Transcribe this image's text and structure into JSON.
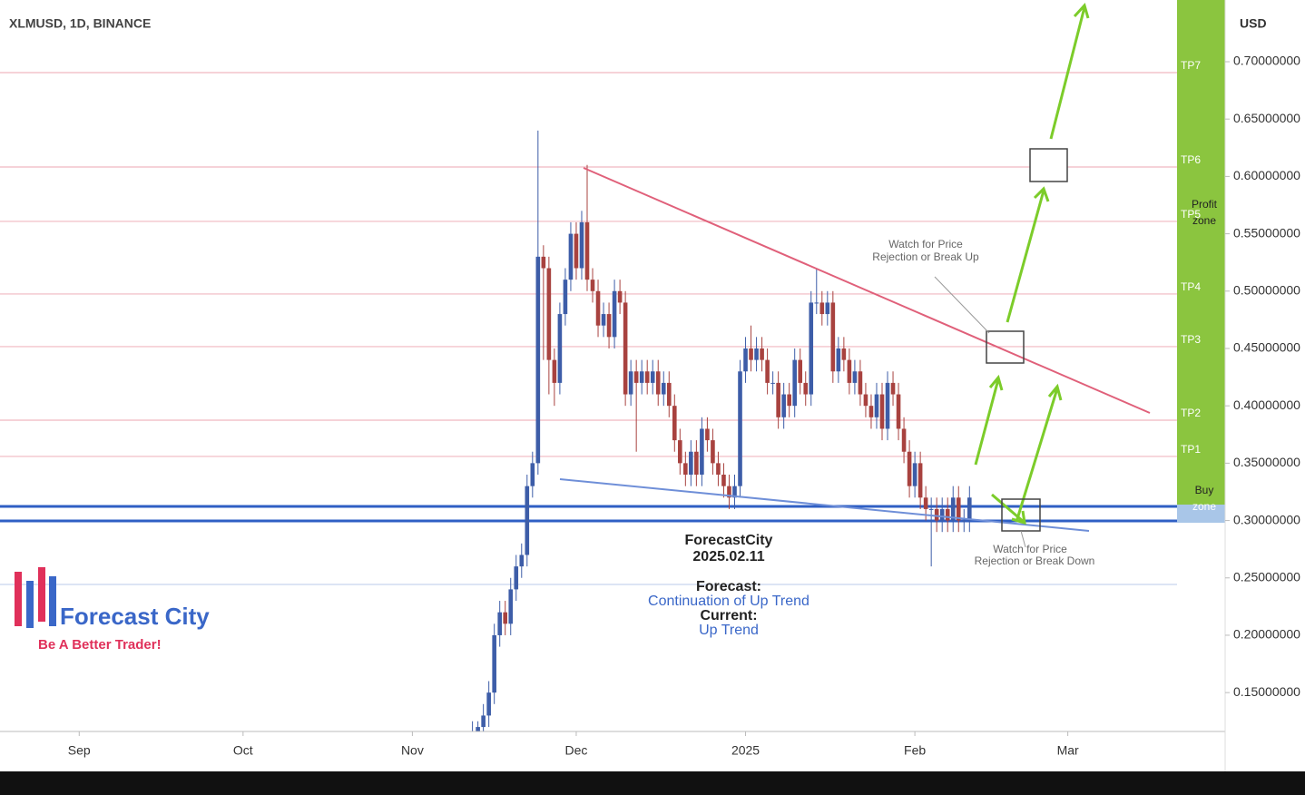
{
  "chart_data": {
    "type": "candlestick",
    "title": "XLMUSD, 1D, BINANCE",
    "currency": "USD",
    "xlim": [
      -14.5,
      201
    ],
    "xticks": [
      {
        "value": 0,
        "label": "Sep"
      },
      {
        "value": 30,
        "label": "Oct"
      },
      {
        "value": 61,
        "label": "Nov"
      },
      {
        "value": 91,
        "label": "Dec"
      },
      {
        "value": 122,
        "label": "2025"
      },
      {
        "value": 153,
        "label": "Feb"
      },
      {
        "value": 181,
        "label": "Mar"
      }
    ],
    "ylim": [
      0.1161,
      0.7538
    ],
    "yticks": [
      {
        "value": 0.7,
        "label": "0.70000000"
      },
      {
        "value": 0.65,
        "label": "0.65000000"
      },
      {
        "value": 0.6,
        "label": "0.60000000"
      },
      {
        "value": 0.55,
        "label": "0.55000000"
      },
      {
        "value": 0.5,
        "label": "0.50000000"
      },
      {
        "value": 0.45,
        "label": "0.45000000"
      },
      {
        "value": 0.4,
        "label": "0.40000000"
      },
      {
        "value": 0.35,
        "label": "0.35000000"
      },
      {
        "value": 0.3,
        "label": "0.30000000"
      },
      {
        "value": 0.25,
        "label": "0.25000000"
      },
      {
        "value": 0.2,
        "label": "0.20000000"
      },
      {
        "value": 0.15,
        "label": "0.15000000"
      }
    ],
    "up_color": "#3d5da8",
    "down_color": "#a8423f",
    "x": [
      72,
      73,
      74,
      75,
      76,
      77,
      78,
      79,
      80,
      81,
      82,
      83,
      84,
      85,
      86,
      87,
      88,
      89,
      90,
      91,
      92,
      93,
      94,
      95,
      96,
      97,
      98,
      99,
      100,
      101,
      102,
      103,
      104,
      105,
      106,
      107,
      108,
      109,
      110,
      111,
      112,
      113,
      114,
      115,
      116,
      117,
      118,
      119,
      120,
      121,
      122,
      123,
      124,
      125,
      126,
      127,
      128,
      129,
      130,
      131,
      132,
      133,
      134,
      135,
      136,
      137,
      138,
      139,
      140,
      141,
      142,
      143,
      144,
      145,
      146,
      147,
      148,
      149,
      150,
      151,
      152,
      153,
      154,
      155,
      156,
      157,
      158,
      159,
      160,
      161,
      162,
      163
    ],
    "open": [
      0.11,
      0.115,
      0.12,
      0.13,
      0.15,
      0.2,
      0.22,
      0.21,
      0.24,
      0.26,
      0.27,
      0.33,
      0.35,
      0.53,
      0.52,
      0.44,
      0.42,
      0.48,
      0.51,
      0.55,
      0.52,
      0.56,
      0.51,
      0.5,
      0.47,
      0.48,
      0.46,
      0.5,
      0.49,
      0.41,
      0.43,
      0.42,
      0.43,
      0.42,
      0.43,
      0.41,
      0.42,
      0.4,
      0.37,
      0.35,
      0.34,
      0.36,
      0.34,
      0.38,
      0.37,
      0.35,
      0.34,
      0.33,
      0.32,
      0.33,
      0.43,
      0.45,
      0.44,
      0.45,
      0.44,
      0.42,
      0.42,
      0.39,
      0.41,
      0.4,
      0.44,
      0.42,
      0.41,
      0.49,
      0.49,
      0.48,
      0.49,
      0.43,
      0.45,
      0.44,
      0.42,
      0.43,
      0.41,
      0.4,
      0.39,
      0.41,
      0.38,
      0.42,
      0.41,
      0.38,
      0.36,
      0.33,
      0.35,
      0.32,
      0.31,
      0.31,
      0.3,
      0.31,
      0.3,
      0.32,
      0.3,
      0.3
    ],
    "high": [
      0.125,
      0.125,
      0.14,
      0.16,
      0.21,
      0.23,
      0.23,
      0.25,
      0.27,
      0.28,
      0.34,
      0.36,
      0.64,
      0.54,
      0.53,
      0.45,
      0.49,
      0.52,
      0.56,
      0.56,
      0.57,
      0.61,
      0.52,
      0.51,
      0.49,
      0.49,
      0.51,
      0.51,
      0.5,
      0.44,
      0.44,
      0.44,
      0.44,
      0.44,
      0.44,
      0.43,
      0.43,
      0.41,
      0.38,
      0.36,
      0.37,
      0.37,
      0.39,
      0.39,
      0.38,
      0.36,
      0.35,
      0.34,
      0.34,
      0.44,
      0.46,
      0.47,
      0.46,
      0.46,
      0.45,
      0.43,
      0.43,
      0.42,
      0.42,
      0.45,
      0.45,
      0.43,
      0.5,
      0.52,
      0.5,
      0.5,
      0.5,
      0.46,
      0.46,
      0.45,
      0.44,
      0.44,
      0.42,
      0.41,
      0.42,
      0.42,
      0.43,
      0.43,
      0.42,
      0.39,
      0.37,
      0.36,
      0.36,
      0.33,
      0.32,
      0.32,
      0.32,
      0.32,
      0.33,
      0.33,
      0.31,
      0.33
    ],
    "low": [
      0.1,
      0.105,
      0.11,
      0.12,
      0.14,
      0.19,
      0.2,
      0.2,
      0.23,
      0.25,
      0.26,
      0.32,
      0.34,
      0.44,
      0.41,
      0.4,
      0.41,
      0.47,
      0.5,
      0.51,
      0.51,
      0.5,
      0.49,
      0.46,
      0.46,
      0.45,
      0.45,
      0.48,
      0.4,
      0.4,
      0.36,
      0.41,
      0.41,
      0.41,
      0.4,
      0.4,
      0.39,
      0.36,
      0.34,
      0.33,
      0.33,
      0.33,
      0.33,
      0.36,
      0.34,
      0.33,
      0.32,
      0.31,
      0.31,
      0.32,
      0.42,
      0.43,
      0.43,
      0.43,
      0.41,
      0.41,
      0.38,
      0.38,
      0.39,
      0.39,
      0.41,
      0.4,
      0.4,
      0.48,
      0.47,
      0.47,
      0.42,
      0.42,
      0.43,
      0.41,
      0.41,
      0.4,
      0.39,
      0.38,
      0.38,
      0.37,
      0.37,
      0.4,
      0.37,
      0.35,
      0.32,
      0.32,
      0.31,
      0.3,
      0.26,
      0.29,
      0.29,
      0.29,
      0.29,
      0.29,
      0.29,
      0.29
    ],
    "close": [
      0.115,
      0.12,
      0.13,
      0.15,
      0.2,
      0.22,
      0.21,
      0.24,
      0.26,
      0.27,
      0.33,
      0.35,
      0.53,
      0.52,
      0.44,
      0.42,
      0.48,
      0.51,
      0.55,
      0.52,
      0.56,
      0.51,
      0.5,
      0.47,
      0.48,
      0.46,
      0.5,
      0.49,
      0.41,
      0.43,
      0.42,
      0.43,
      0.42,
      0.43,
      0.41,
      0.42,
      0.4,
      0.37,
      0.35,
      0.34,
      0.36,
      0.34,
      0.38,
      0.37,
      0.35,
      0.34,
      0.33,
      0.32,
      0.33,
      0.43,
      0.45,
      0.44,
      0.45,
      0.44,
      0.42,
      0.42,
      0.39,
      0.41,
      0.4,
      0.44,
      0.42,
      0.41,
      0.49,
      0.49,
      0.48,
      0.49,
      0.43,
      0.45,
      0.44,
      0.42,
      0.43,
      0.41,
      0.4,
      0.39,
      0.41,
      0.38,
      0.42,
      0.41,
      0.38,
      0.36,
      0.33,
      0.35,
      0.32,
      0.31,
      0.31,
      0.3,
      0.31,
      0.3,
      0.32,
      0.3,
      0.3,
      0.32
    ],
    "levels": [
      {
        "label": "TP7",
        "value": 0.6905,
        "color": "#f0b8c0"
      },
      {
        "label": "TP6",
        "value": 0.6082,
        "color": "#f0b8c0"
      },
      {
        "label": "TP5",
        "value": 0.5608,
        "color": "#f0b8c0"
      },
      {
        "label": "TP4",
        "value": 0.4975,
        "color": "#f0b8c0"
      },
      {
        "label": "TP3",
        "value": 0.4516,
        "color": "#f0b8c0"
      },
      {
        "label": "TP2",
        "value": 0.3875,
        "color": "#f0b8c0"
      },
      {
        "label": "TP1",
        "value": 0.3559,
        "color": "#f0b8c0"
      }
    ],
    "support_lines": [
      {
        "value": 0.3123,
        "color": "#2f5fc4"
      },
      {
        "value": 0.2997,
        "color": "#2f5fc4"
      },
      {
        "value": 0.2443,
        "color": "#c8d4ee"
      }
    ],
    "zone_labels": [
      [
        "Profit",
        "zone"
      ],
      [
        "Buy",
        "zone"
      ]
    ],
    "annotations": [
      [
        "Watch for Price",
        "Rejection or Break Up"
      ],
      [
        "Watch for Price",
        "Rejection or Break Down"
      ]
    ],
    "forecast": {
      "author": "ForecastCity",
      "date": "2025.02.11",
      "forecast_label": "Forecast:",
      "forecast": "Continuation of Up Trend",
      "current_label": "Current:",
      "current": "Up Trend"
    },
    "logo": {
      "name": "Forecast City",
      "tagline": "Be A Better Trader!"
    }
  }
}
